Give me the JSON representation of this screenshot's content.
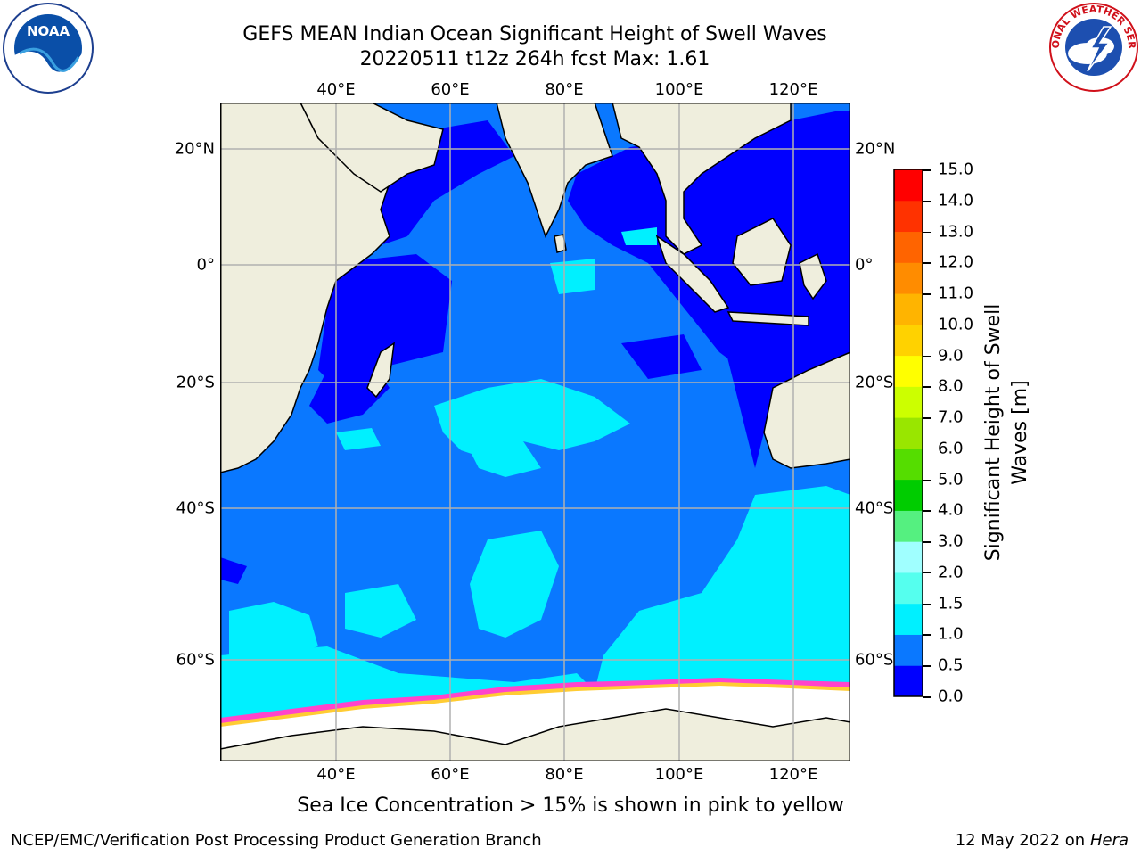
{
  "title": {
    "line1": "GEFS MEAN Indian Ocean Significant Height of Swell Waves",
    "line2": "20220511 t12z 264h fcst   Max: 1.61"
  },
  "map": {
    "lon_ticks": [
      "40°E",
      "60°E",
      "80°E",
      "100°E",
      "120°E"
    ],
    "lat_ticks": [
      "20°N",
      "0°",
      "20°S",
      "40°S",
      "60°S"
    ]
  },
  "colorbar": {
    "label_line1": "Significant Height of Swell",
    "label_line2": "Waves [m]",
    "ticks": [
      "0.0",
      "0.5",
      "1.0",
      "1.5",
      "2.0",
      "3.0",
      "4.0",
      "5.0",
      "6.0",
      "7.0",
      "8.0",
      "9.0",
      "10.0",
      "11.0",
      "12.0",
      "13.0",
      "14.0",
      "15.0"
    ],
    "colors": [
      "#0000ff",
      "#0a78ff",
      "#00f0ff",
      "#55ffee",
      "#a0ffff",
      "#55f080",
      "#00cc00",
      "#55dd00",
      "#99e600",
      "#ccff00",
      "#ffff00",
      "#ffd200",
      "#ffb400",
      "#ff8c00",
      "#ff6400",
      "#ff3200",
      "#ff0000"
    ]
  },
  "colors": {
    "land": "#efeedd",
    "ice": "#ffffff",
    "deep_blue": "#0000ff",
    "mid_blue": "#0a78ff",
    "cyan": "#00f0ff",
    "grid": "#b0b0b0"
  },
  "note": "Sea Ice Concentration > 15% is shown in pink to yellow",
  "footer": {
    "left": "NCEP/EMC/Verification Post Processing Product Generation Branch",
    "right_date": "12 May 2022 on",
    "right_host": "Hera"
  },
  "logos": {
    "noaa_text": "NOAA",
    "nws_text": "NATIONAL WEATHER SERVICE"
  }
}
